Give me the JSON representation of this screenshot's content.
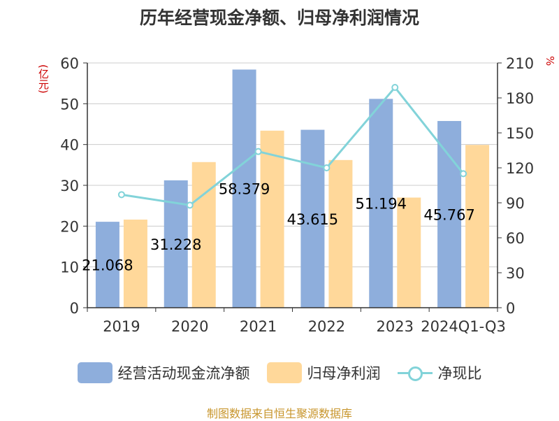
{
  "title": "历年经营现金净额、归母净利润情况",
  "source": "制图数据来自恒生聚源数据库",
  "colors": {
    "operating_cash_flow": "#8eaedc",
    "net_profit": "#ffd89a",
    "ratio": "#82d3d9",
    "unit_left": "#cc0000",
    "unit_right": "#cc0000",
    "source": "#c8962d",
    "axis": "#333333",
    "grid": "#cccccc"
  },
  "chart_data": {
    "type": "bar",
    "title": "历年经营现金净额、归母净利润情况",
    "categories": [
      "2019",
      "2020",
      "2021",
      "2022",
      "2023",
      "2024Q1-Q3"
    ],
    "series": [
      {
        "name": "经营活动现金流净额",
        "type": "bar",
        "axis": "left",
        "values": [
          21.068,
          31.228,
          58.379,
          43.615,
          51.194,
          45.767
        ]
      },
      {
        "name": "归母净利润",
        "type": "bar",
        "axis": "left",
        "values": [
          21.6,
          35.7,
          43.4,
          36.2,
          27.0,
          39.9
        ]
      },
      {
        "name": "净现比",
        "type": "line",
        "axis": "right",
        "values": [
          97,
          88,
          134,
          120,
          189,
          115
        ]
      }
    ],
    "data_labels": [
      "21.068",
      "31.228",
      "58.379",
      "43.615",
      "51.194",
      "45.767"
    ],
    "left_axis": {
      "label": "(亿元)",
      "ylim": [
        0,
        60
      ],
      "ticks": [
        "0",
        "10",
        "20",
        "30",
        "40",
        "50",
        "60"
      ]
    },
    "right_axis": {
      "label": "%",
      "ylim": [
        0,
        210
      ],
      "ticks": [
        "0",
        "30",
        "60",
        "90",
        "120",
        "150",
        "180",
        "210"
      ]
    },
    "grid": true,
    "legend_position": "bottom"
  }
}
